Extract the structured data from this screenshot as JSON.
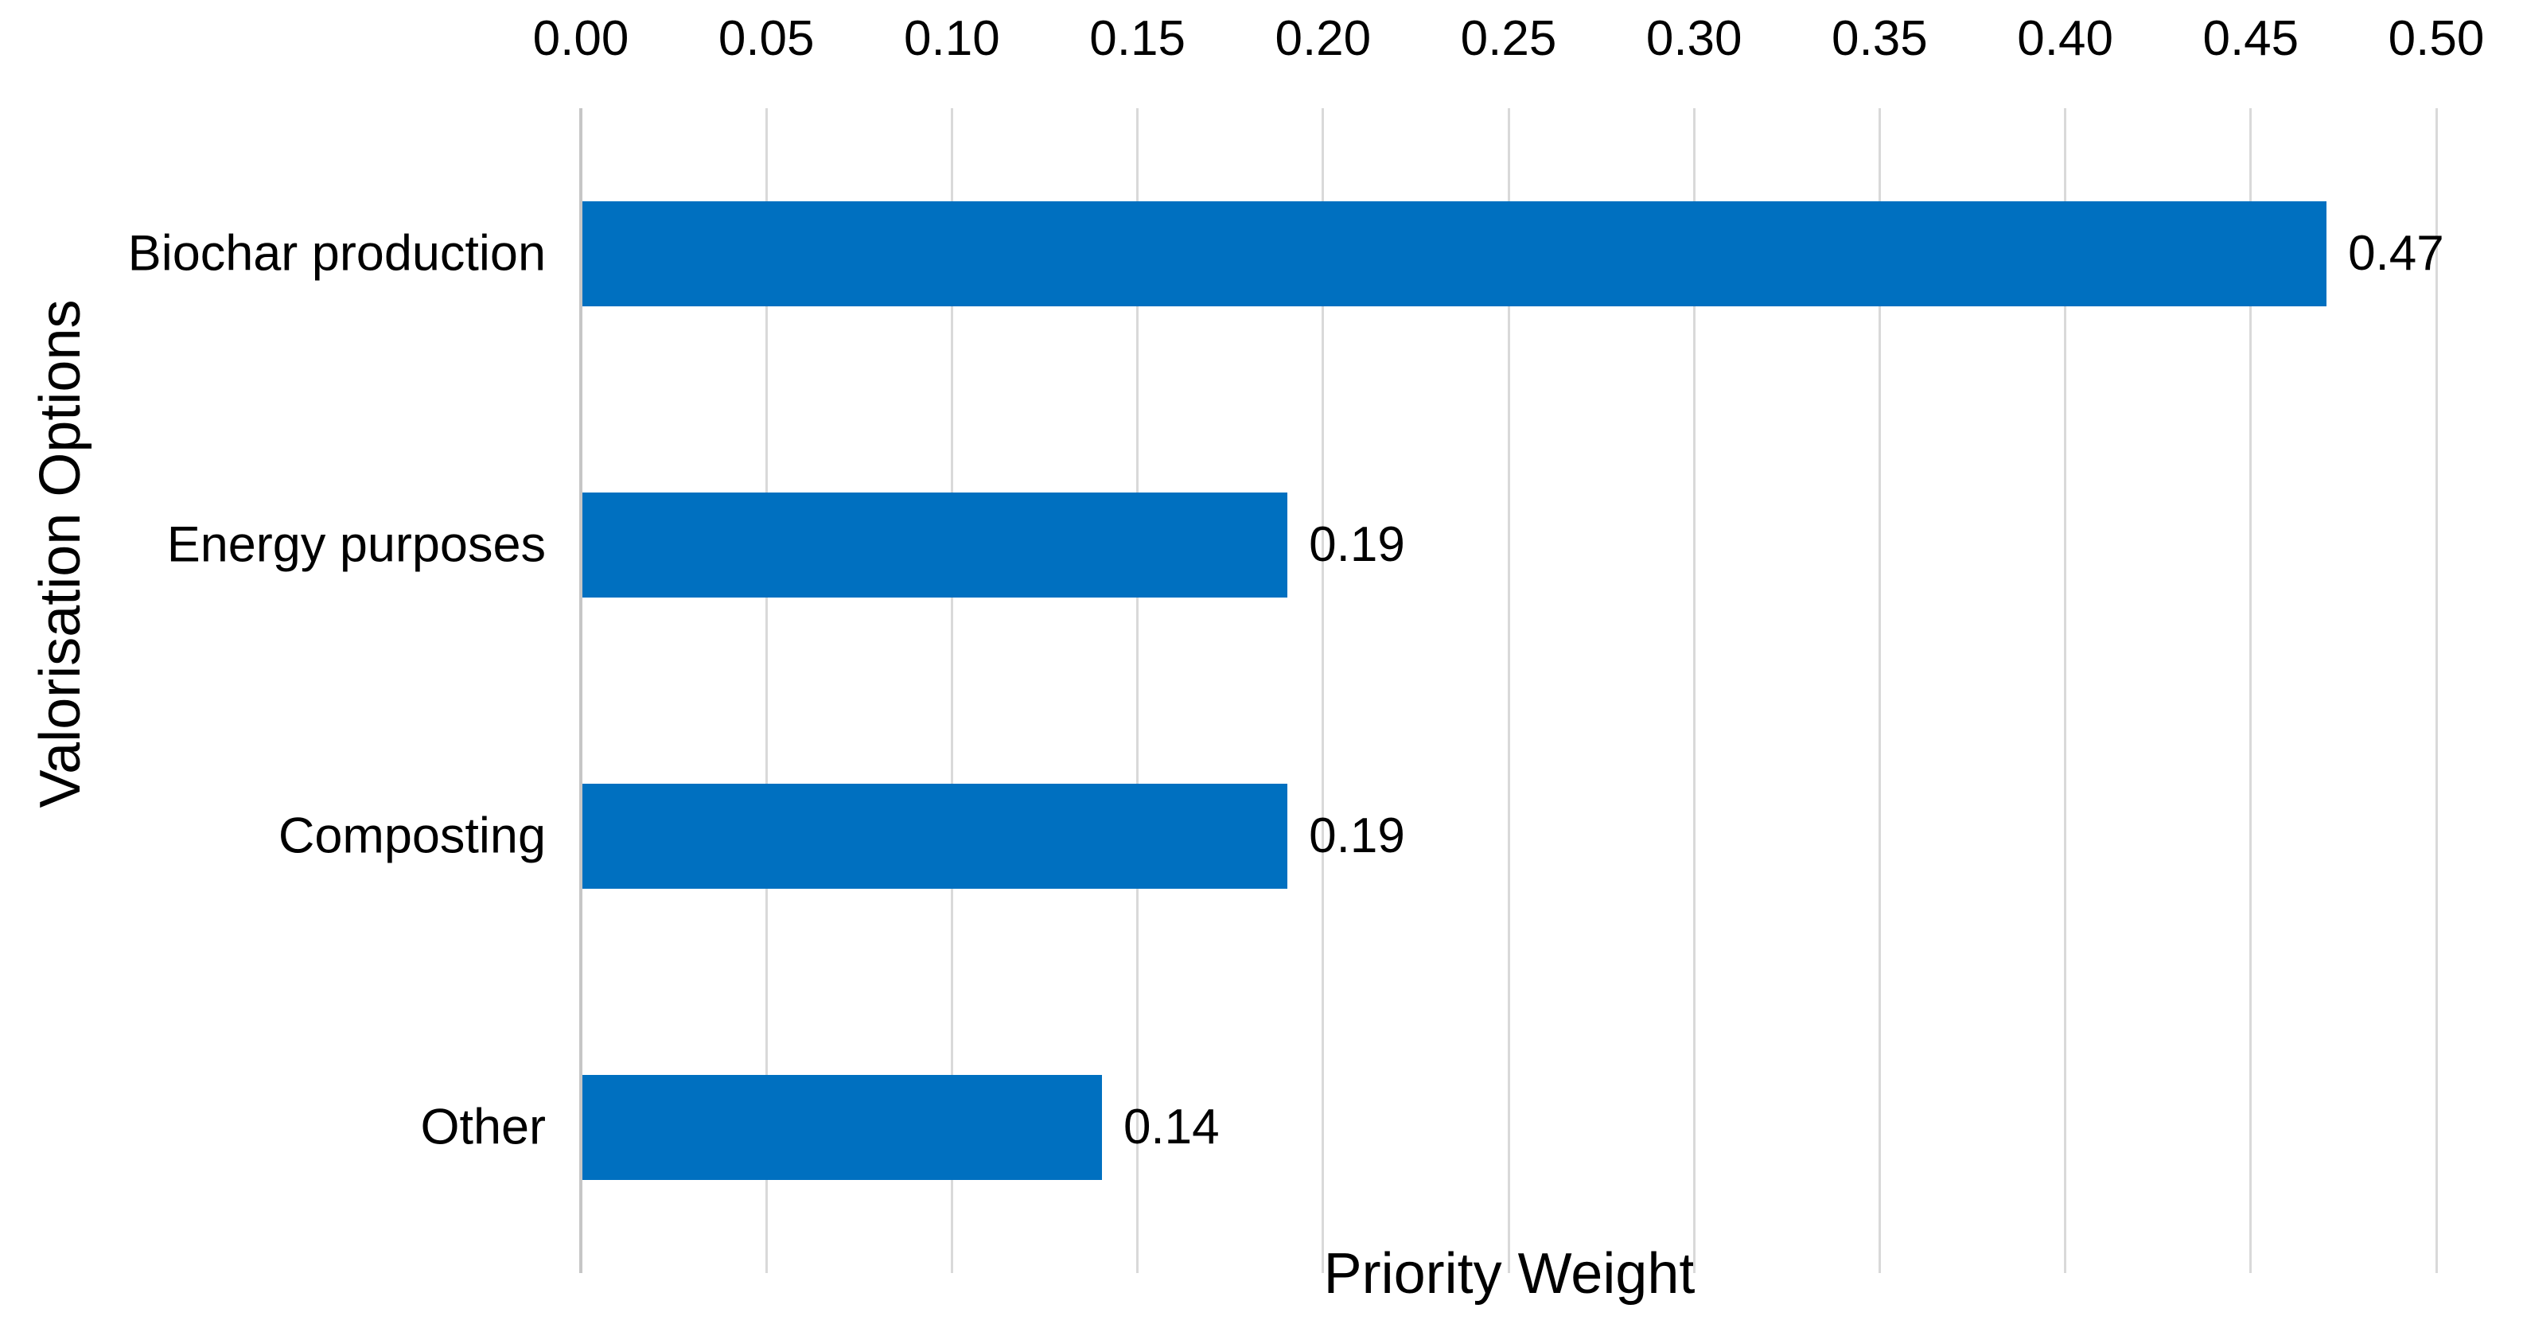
{
  "chart_data": {
    "type": "bar",
    "orientation": "horizontal",
    "categories": [
      "Biochar production",
      "Energy purposes",
      "Composting",
      "Other"
    ],
    "values": [
      0.47,
      0.19,
      0.19,
      0.14
    ],
    "data_labels": [
      "0.47",
      "0.19",
      "0.19",
      "0.14"
    ],
    "xlabel": "Priority Weight",
    "ylabel": "Valorisation Options",
    "xlim": [
      0.0,
      0.5
    ],
    "xtick_interval": 0.05,
    "xticks": [
      "0.00",
      "0.05",
      "0.10",
      "0.15",
      "0.20",
      "0.25",
      "0.30",
      "0.35",
      "0.40",
      "0.45",
      "0.50"
    ],
    "tick_position": "top",
    "grid": "vertical-major",
    "legend": "none",
    "bar_color": "#0070C0",
    "gridline_color": "#D9D9D9",
    "axis_line_color": "#C6C6C6",
    "text_color": "#000000"
  }
}
